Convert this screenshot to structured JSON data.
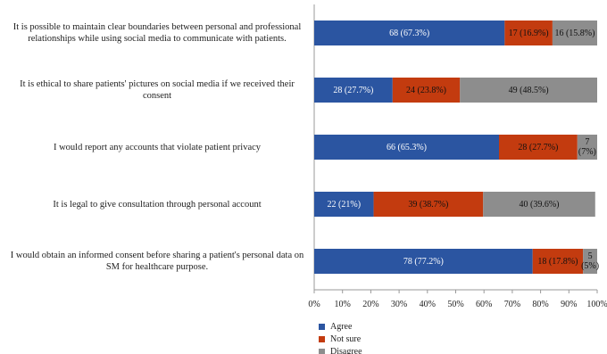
{
  "chart_data": {
    "type": "stacked_bar_horizontal",
    "categories": [
      "It is possible to maintain clear boundaries between personal and professional relationships while using social media to communicate with patients.",
      "It is ethical to share patients' pictures on social media if we received their consent",
      "I would report any accounts that violate patient privacy",
      "It is legal to give consultation through personal account",
      "I would obtain an informed consent before sharing a patient's personal data on SM for healthcare purpose."
    ],
    "series": [
      {
        "name": "Agree",
        "color": "#2b55a1",
        "values": [
          67.3,
          27.7,
          65.3,
          21,
          77.2
        ],
        "value_labels": [
          "68 (67.3%)",
          "28 (27.7%)",
          "66 (65.3%)",
          "22 (21%)",
          "78 (77.2%)"
        ]
      },
      {
        "name": "Not sure",
        "color": "#c33b0f",
        "values": [
          16.9,
          23.8,
          27.7,
          38.7,
          17.8
        ],
        "value_labels": [
          "17 (16.9%)",
          "24 (23.8%)",
          "28 (27.7%)",
          "39 (38.7%)",
          "18 (17.8%)"
        ]
      },
      {
        "name": "Disagree",
        "color": "#8d8d8d",
        "values": [
          15.8,
          48.5,
          7,
          39.6,
          5
        ],
        "value_labels": [
          "16 (15.8%)",
          "49 (48.5%)",
          "7 (7%)",
          "40 (39.6%)",
          "5 (5%)"
        ]
      }
    ],
    "xlim": [
      0,
      100
    ],
    "xticks": [
      {
        "value": 0,
        "label": "0%"
      },
      {
        "value": 10,
        "label": "10%"
      },
      {
        "value": 20,
        "label": "20%"
      },
      {
        "value": 30,
        "label": "30%"
      },
      {
        "value": 40,
        "label": "40%"
      },
      {
        "value": 50,
        "label": "50%"
      },
      {
        "value": 60,
        "label": "60%"
      },
      {
        "value": 70,
        "label": "70%"
      },
      {
        "value": 80,
        "label": "80%"
      },
      {
        "value": 90,
        "label": "90%"
      },
      {
        "value": 100,
        "label": "100%"
      }
    ],
    "legend": "bottom-left"
  }
}
